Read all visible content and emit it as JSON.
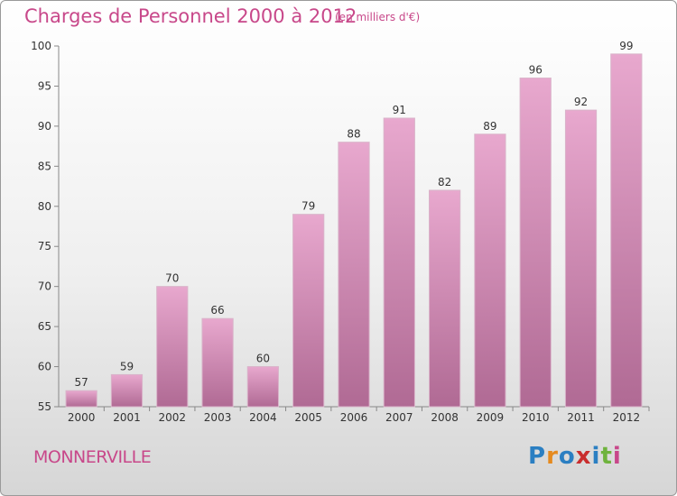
{
  "header": {
    "title": "Charges de Personnel 2000 à 2012",
    "subtitle": "(en milliers d'€)"
  },
  "footer": {
    "commune": "MONNERVILLE",
    "logo_text": "Proxiti",
    "logo_letters": [
      {
        "ch": "P",
        "color": "#2b7fc2"
      },
      {
        "ch": "r",
        "color": "#e58a1f"
      },
      {
        "ch": "o",
        "color": "#2b7fc2"
      },
      {
        "ch": "x",
        "color": "#c92e2e"
      },
      {
        "ch": "i",
        "color": "#2b7fc2"
      },
      {
        "ch": "t",
        "color": "#6fb33d"
      },
      {
        "ch": "i",
        "color": "#c8488a"
      }
    ]
  },
  "colors": {
    "accent": "#c8488a",
    "bar_top": "#e8a8ce",
    "bar_bottom": "#b06a94",
    "axis": "#888888"
  },
  "chart_data": {
    "type": "bar",
    "title": "Charges de Personnel 2000 à 2012",
    "subtitle": "(en milliers d'€)",
    "categories": [
      "2000",
      "2001",
      "2002",
      "2003",
      "2004",
      "2005",
      "2006",
      "2007",
      "2008",
      "2009",
      "2010",
      "2011",
      "2012"
    ],
    "values": [
      57,
      59,
      70,
      66,
      60,
      79,
      88,
      91,
      82,
      89,
      96,
      92,
      99
    ],
    "ylim": [
      55,
      100
    ],
    "yticks": [
      55,
      60,
      65,
      70,
      75,
      80,
      85,
      90,
      95,
      100
    ],
    "grid": false,
    "data_labels": true,
    "legend": "none"
  }
}
